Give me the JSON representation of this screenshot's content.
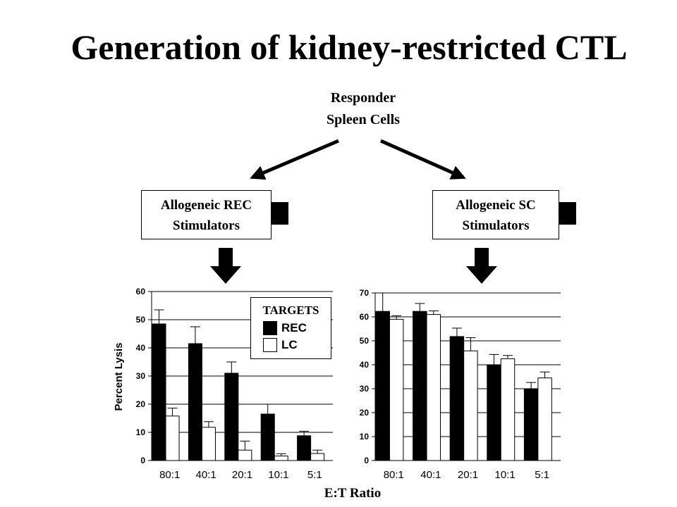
{
  "title": "Generation of kidney-restricted CTL",
  "responder": {
    "line1": "Responder",
    "line2": "Spleen Cells"
  },
  "stimulators": [
    {
      "line1": "Allogeneic REC",
      "line2": "Stimulators"
    },
    {
      "line1": "Allogeneic SC",
      "line2": "Stimulators"
    }
  ],
  "legend": {
    "title": "TARGETS",
    "items": [
      {
        "label": "REC",
        "color": "#000000"
      },
      {
        "label": "LC",
        "color": "#ffffff"
      }
    ]
  },
  "chart_data": [
    {
      "type": "bar",
      "categories": [
        "80:1",
        "40:1",
        "20:1",
        "10:1",
        "5:1"
      ],
      "series": [
        {
          "name": "REC",
          "values": [
            48.5,
            41.5,
            31,
            16.5,
            8.8
          ],
          "errors": [
            5,
            6,
            4,
            3.5,
            1.6
          ],
          "color": "#000000"
        },
        {
          "name": "LC",
          "values": [
            15.8,
            11.8,
            3.7,
            1.6,
            2.5
          ],
          "errors": [
            2.8,
            2,
            3.2,
            0.8,
            1.2
          ],
          "color": "#ffffff"
        }
      ],
      "ylabel": "Percent Lysis",
      "ylim": [
        0,
        60
      ],
      "yticks": [
        0,
        10,
        20,
        30,
        40,
        50,
        60
      ],
      "grid": true,
      "legend": "top-right"
    },
    {
      "type": "bar",
      "categories": [
        "80:1",
        "40:1",
        "20:1",
        "10:1",
        "5:1"
      ],
      "series": [
        {
          "name": "REC",
          "values": [
            62.3,
            62.3,
            51.8,
            40,
            29.8
          ],
          "errors": [
            7.7,
            3.3,
            3.5,
            4.3,
            2.8
          ],
          "color": "#000000"
        },
        {
          "name": "LC",
          "values": [
            59,
            61,
            45.8,
            42.5,
            34.5
          ],
          "errors": [
            1.5,
            1.5,
            5.5,
            1.4,
            2.5
          ],
          "color": "#ffffff"
        }
      ],
      "ylim": [
        0,
        70
      ],
      "yticks": [
        0,
        10,
        20,
        30,
        40,
        50,
        60,
        70
      ],
      "grid": true
    }
  ],
  "xlabel": "E:T Ratio"
}
